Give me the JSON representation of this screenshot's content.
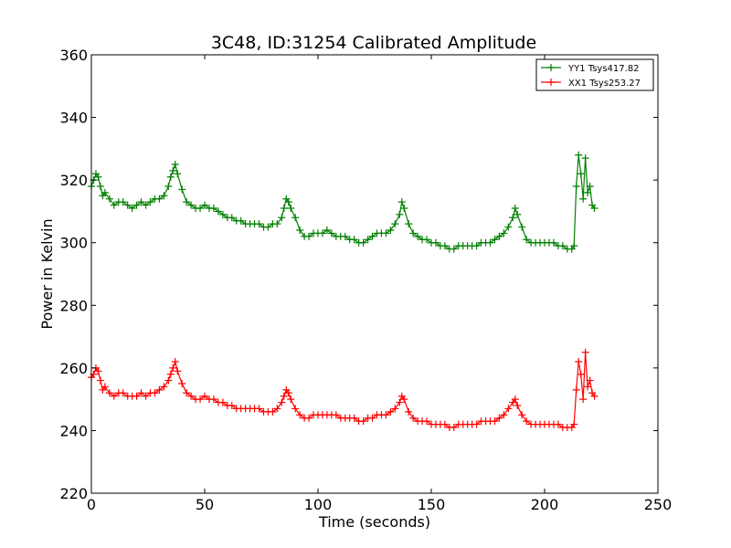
{
  "chart_data": {
    "type": "line",
    "title": "3C48, ID:31254 Calibrated Amplitude",
    "xlabel": "Time (seconds)",
    "ylabel": "Power in Kelvin",
    "xlim": [
      0,
      250
    ],
    "ylim": [
      220,
      360
    ],
    "xticks": [
      "0",
      "50",
      "100",
      "150",
      "200",
      "250"
    ],
    "yticks": [
      "220",
      "240",
      "260",
      "280",
      "300",
      "320",
      "340",
      "360"
    ],
    "grid": false,
    "legend_position": "top-right",
    "marker": "+",
    "series": [
      {
        "name": "YY1 Tsys417.82",
        "color": "#008000",
        "x": [
          0,
          1,
          2,
          3,
          4,
          5,
          6,
          8,
          10,
          12,
          14,
          16,
          18,
          20,
          22,
          24,
          26,
          28,
          30,
          32,
          34,
          35,
          36,
          37,
          38,
          40,
          42,
          44,
          46,
          48,
          50,
          52,
          54,
          56,
          58,
          60,
          62,
          64,
          66,
          68,
          70,
          72,
          74,
          76,
          78,
          80,
          82,
          84,
          85,
          86,
          87,
          88,
          90,
          92,
          94,
          96,
          98,
          100,
          102,
          104,
          106,
          108,
          110,
          112,
          114,
          116,
          118,
          120,
          122,
          124,
          126,
          128,
          130,
          132,
          134,
          136,
          137,
          138,
          140,
          142,
          144,
          146,
          148,
          150,
          152,
          154,
          156,
          158,
          160,
          162,
          164,
          166,
          168,
          170,
          172,
          174,
          176,
          178,
          180,
          182,
          184,
          186,
          187,
          188,
          190,
          192,
          194,
          196,
          198,
          200,
          202,
          204,
          206,
          208,
          210,
          212,
          213,
          214,
          215,
          216,
          217,
          218,
          219,
          220,
          221,
          222
        ],
        "y": [
          318,
          320,
          322,
          321,
          318,
          315,
          316,
          314,
          312,
          313,
          313,
          312,
          311,
          312,
          313,
          312,
          313,
          314,
          314,
          315,
          318,
          321,
          323,
          325,
          322,
          317,
          313,
          312,
          311,
          311,
          312,
          311,
          311,
          310,
          309,
          308,
          308,
          307,
          307,
          306,
          306,
          306,
          306,
          305,
          305,
          306,
          306,
          308,
          311,
          314,
          313,
          311,
          308,
          304,
          302,
          302,
          303,
          303,
          303,
          304,
          303,
          302,
          302,
          302,
          301,
          301,
          300,
          300,
          301,
          302,
          303,
          303,
          303,
          304,
          306,
          309,
          313,
          311,
          306,
          303,
          302,
          301,
          301,
          300,
          300,
          299,
          299,
          298,
          298,
          299,
          299,
          299,
          299,
          299,
          300,
          300,
          300,
          301,
          302,
          303,
          305,
          308,
          311,
          309,
          305,
          301,
          300,
          300,
          300,
          300,
          300,
          300,
          299,
          299,
          298,
          298,
          299,
          318,
          328,
          322,
          314,
          327,
          316,
          318,
          312,
          311
        ]
      },
      {
        "name": "XX1 Tsys253.27",
        "color": "#ff0000",
        "x": [
          0,
          1,
          2,
          3,
          4,
          5,
          6,
          8,
          10,
          12,
          14,
          16,
          18,
          20,
          22,
          24,
          26,
          28,
          30,
          32,
          34,
          35,
          36,
          37,
          38,
          40,
          42,
          44,
          46,
          48,
          50,
          52,
          54,
          56,
          58,
          60,
          62,
          64,
          66,
          68,
          70,
          72,
          74,
          76,
          78,
          80,
          82,
          84,
          85,
          86,
          87,
          88,
          90,
          92,
          94,
          96,
          98,
          100,
          102,
          104,
          106,
          108,
          110,
          112,
          114,
          116,
          118,
          120,
          122,
          124,
          126,
          128,
          130,
          132,
          134,
          136,
          137,
          138,
          140,
          142,
          144,
          146,
          148,
          150,
          152,
          154,
          156,
          158,
          160,
          162,
          164,
          166,
          168,
          170,
          172,
          174,
          176,
          178,
          180,
          182,
          184,
          186,
          187,
          188,
          190,
          192,
          194,
          196,
          198,
          200,
          202,
          204,
          206,
          208,
          210,
          212,
          213,
          214,
          215,
          216,
          217,
          218,
          219,
          220,
          221,
          222
        ],
        "y": [
          257,
          258,
          260,
          259,
          256,
          253,
          254,
          252,
          251,
          252,
          252,
          251,
          251,
          251,
          252,
          251,
          252,
          252,
          253,
          254,
          256,
          258,
          260,
          262,
          259,
          255,
          252,
          251,
          250,
          250,
          251,
          250,
          250,
          249,
          249,
          248,
          248,
          247,
          247,
          247,
          247,
          247,
          247,
          246,
          246,
          246,
          247,
          249,
          251,
          253,
          252,
          250,
          247,
          245,
          244,
          244,
          245,
          245,
          245,
          245,
          245,
          245,
          244,
          244,
          244,
          244,
          243,
          243,
          244,
          244,
          245,
          245,
          245,
          246,
          247,
          249,
          251,
          250,
          246,
          244,
          243,
          243,
          243,
          242,
          242,
          242,
          242,
          241,
          241,
          242,
          242,
          242,
          242,
          242,
          243,
          243,
          243,
          243,
          244,
          245,
          247,
          249,
          250,
          248,
          245,
          243,
          242,
          242,
          242,
          242,
          242,
          242,
          242,
          241,
          241,
          241,
          242,
          253,
          262,
          258,
          250,
          265,
          254,
          256,
          252,
          251
        ]
      }
    ]
  }
}
